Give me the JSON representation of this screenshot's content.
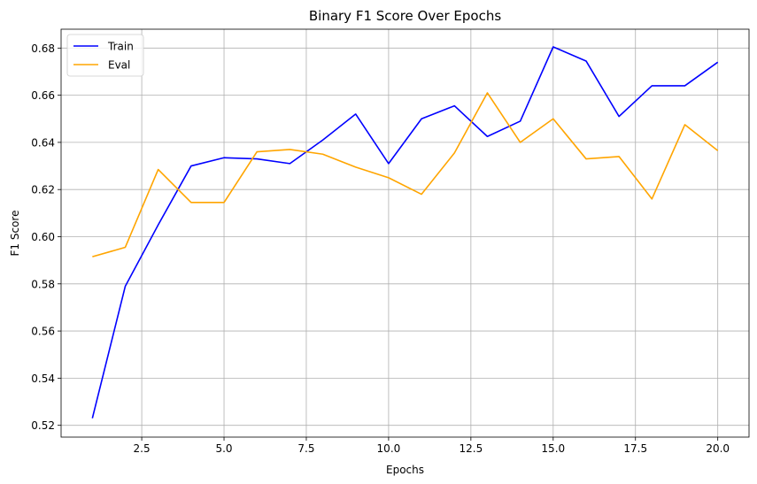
{
  "chart_data": {
    "type": "line",
    "title": "Binary F1 Score Over Epochs",
    "xlabel": "Epochs",
    "ylabel": "F1 Score",
    "xlim": [
      0.05,
      20.95
    ],
    "ylim": [
      0.515,
      0.688
    ],
    "xticks": [
      2.5,
      5.0,
      7.5,
      10.0,
      12.5,
      15.0,
      17.5,
      20.0
    ],
    "xtick_labels": [
      "2.5",
      "5.0",
      "7.5",
      "10.0",
      "12.5",
      "15.0",
      "17.5",
      "20.0"
    ],
    "yticks": [
      0.52,
      0.54,
      0.56,
      0.58,
      0.6,
      0.62,
      0.64,
      0.66,
      0.68
    ],
    "ytick_labels": [
      "0.52",
      "0.54",
      "0.56",
      "0.58",
      "0.60",
      "0.62",
      "0.64",
      "0.66",
      "0.68"
    ],
    "grid": true,
    "legend_position": "top-left",
    "x": [
      1,
      2,
      3,
      4,
      5,
      6,
      7,
      8,
      9,
      10,
      11,
      12,
      13,
      14,
      15,
      16,
      17,
      18,
      19,
      20
    ],
    "series": [
      {
        "name": "Train",
        "color": "#0000ff",
        "values": [
          0.523,
          0.579,
          0.605,
          0.63,
          0.6335,
          0.633,
          0.631,
          0.641,
          0.652,
          0.631,
          0.65,
          0.6555,
          0.6425,
          0.649,
          0.6805,
          0.6745,
          0.651,
          0.664,
          0.664,
          0.674
        ]
      },
      {
        "name": "Eval",
        "color": "#ffa500",
        "values": [
          0.5915,
          0.5955,
          0.6285,
          0.6145,
          0.6145,
          0.636,
          0.637,
          0.635,
          0.6295,
          0.625,
          0.618,
          0.6355,
          0.661,
          0.64,
          0.65,
          0.633,
          0.634,
          0.616,
          0.6475,
          0.6365
        ]
      }
    ]
  }
}
